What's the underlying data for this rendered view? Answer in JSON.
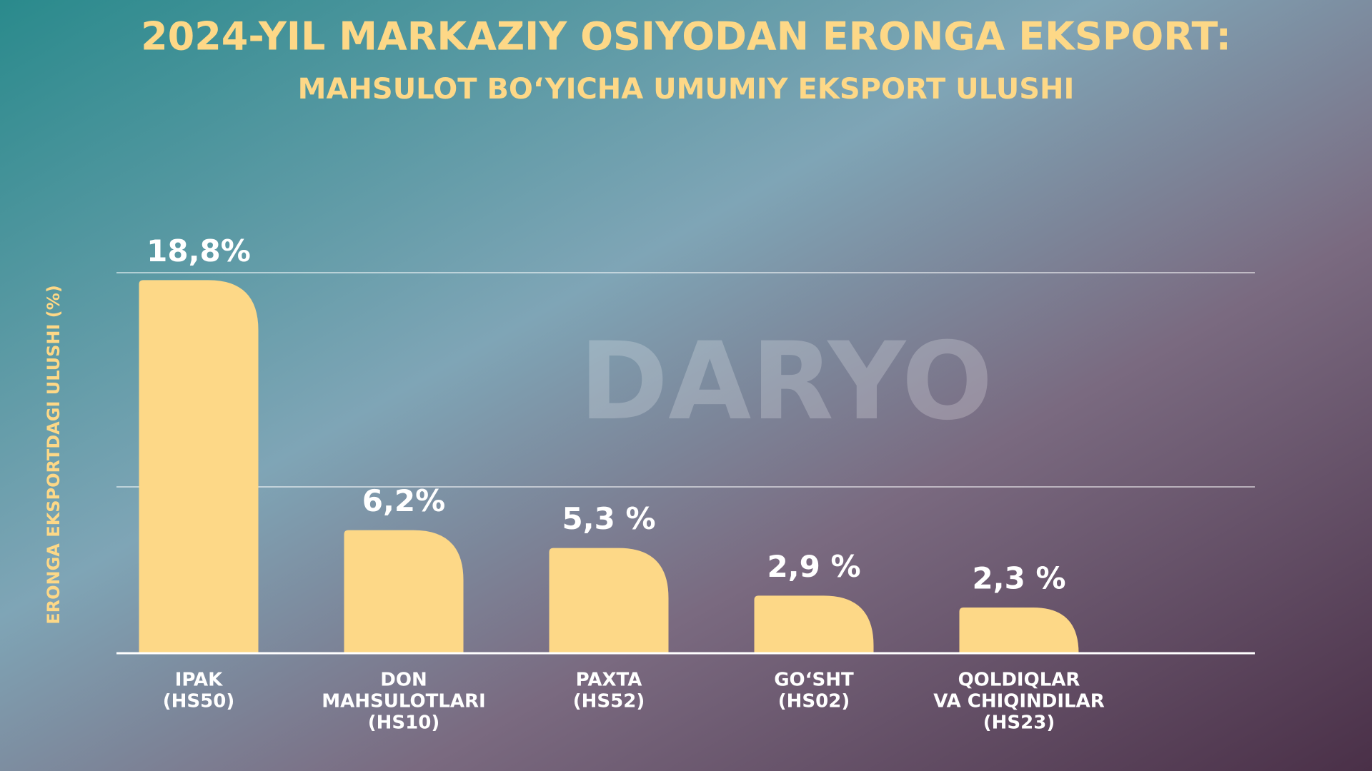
{
  "chart_data": {
    "type": "bar",
    "title": "2024-YIL MARKAZIY OSIYODAN ERONGA EKSPORT:",
    "subtitle": "MAHSULOT BO‘YICHA UMUMIY EKSPORT ULUSHI",
    "y_label": "ERONGA EKSPORTDAGI ULUSHI (%)",
    "watermark": "DARYO",
    "categories": [
      [
        "IPAK",
        "(HS50)"
      ],
      [
        "DON",
        "MAHSULOTLARI",
        "(HS10)"
      ],
      [
        "PAXTA",
        "(HS52)"
      ],
      [
        "GO‘SHT",
        "(HS02)"
      ],
      [
        "QOLDIQLAR",
        "VA CHIQINDILAR",
        "(HS23)"
      ]
    ],
    "values": [
      18.8,
      6.2,
      5.3,
      2.9,
      2.3
    ],
    "value_labels": [
      "18,8%",
      "6,2%",
      "5,3 %",
      "2,9 %",
      "2,3 %"
    ],
    "color": "#fdd887",
    "ylim": [
      0,
      20
    ]
  }
}
